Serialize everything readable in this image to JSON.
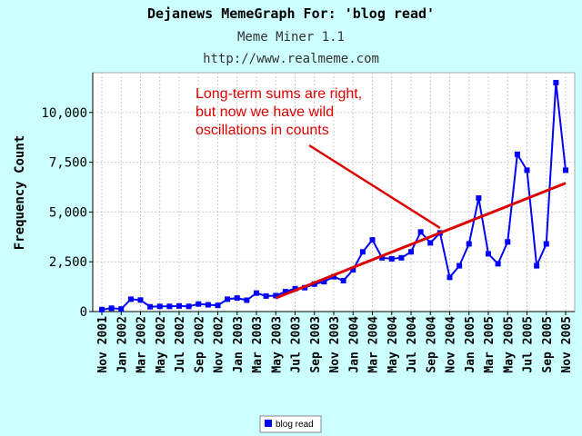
{
  "chart_data": {
    "type": "line",
    "title": "Dejanews MemeGraph For: 'blog read'",
    "subtitle": "Meme Miner 1.1",
    "source_url": "http://www.realmeme.com",
    "ylabel": "Frequency Count",
    "xlabel": "",
    "ylim": [
      0,
      12000
    ],
    "yticks": [
      0,
      2500,
      5000,
      7500,
      10000
    ],
    "ytick_labels": [
      "0",
      "2,500",
      "5,000",
      "7,500",
      "10,000"
    ],
    "grid": true,
    "x_tick_labels": [
      "Nov 2001",
      "Jan 2002",
      "Mar 2002",
      "May 2002",
      "Jul 2002",
      "Sep 2002",
      "Nov 2002",
      "Jan 2003",
      "Mar 2003",
      "May 2003",
      "Jul 2003",
      "Sep 2003",
      "Nov 2003",
      "Jan 2004",
      "Mar 2004",
      "May 2004",
      "Jul 2004",
      "Sep 2004",
      "Nov 2004",
      "Jan 2005",
      "Mar 2005",
      "May 2005",
      "Jul 2005",
      "Sep 2005",
      "Nov 2005"
    ],
    "series": [
      {
        "name": "blog read",
        "color": "#0000ff",
        "values": [
          100,
          170,
          130,
          620,
          580,
          240,
          260,
          260,
          280,
          260,
          380,
          340,
          310,
          620,
          680,
          570,
          930,
          780,
          800,
          1000,
          1150,
          1200,
          1380,
          1500,
          1750,
          1550,
          2100,
          3000,
          3600,
          2700,
          2650,
          2700,
          3000,
          4000,
          3450,
          3950,
          1720,
          2300,
          3400,
          5700,
          2900,
          2400,
          3500,
          7900,
          7100,
          2300,
          3400,
          11500,
          7100
        ]
      }
    ],
    "trend_line": {
      "color": "#dd0000",
      "x_start_index": 18,
      "y_start": 680,
      "x_end_index": 48,
      "y_end": 6450
    },
    "annotation": {
      "lines": [
        "Long-term sums are right,",
        "but now we have wild",
        "oscillations in counts"
      ],
      "color": "#dd0000",
      "arrow_color": "#dd0000",
      "arrow_target_index": 35,
      "arrow_target_value": 4200
    },
    "legend": {
      "position": "bottom-center",
      "label": "blog read"
    }
  }
}
